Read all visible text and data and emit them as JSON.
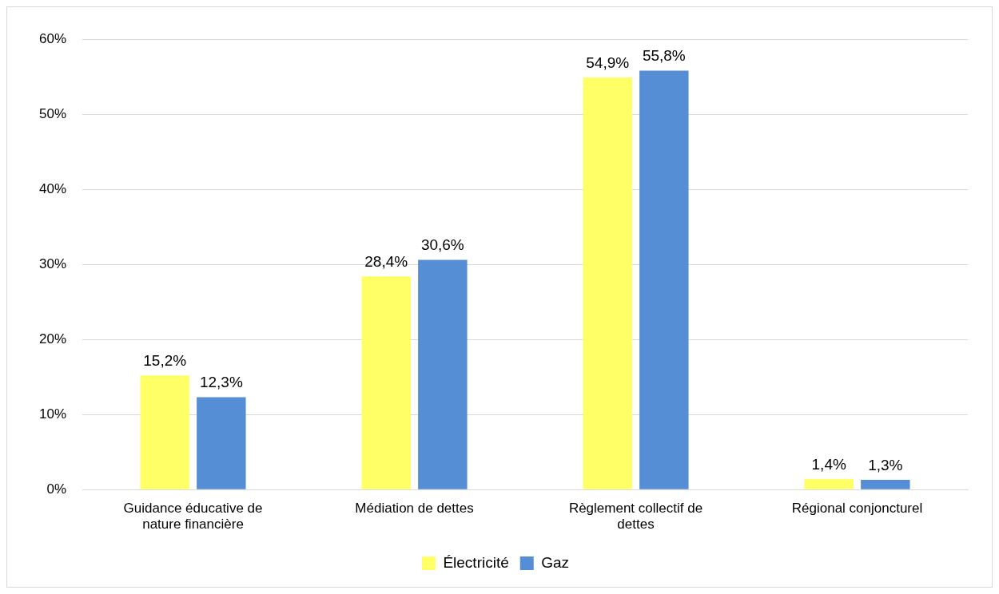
{
  "chart_data": {
    "type": "bar",
    "categories": [
      "Guidance éducative de nature financière",
      "Médiation de dettes",
      "Règlement collectif de dettes",
      "Régional conjoncturel"
    ],
    "series": [
      {
        "name": "Électricité",
        "color": "#ffff66",
        "values": [
          15.2,
          28.4,
          54.9,
          1.4
        ],
        "value_labels": [
          "15,2%",
          "28,4%",
          "54,9%",
          "1,4%"
        ]
      },
      {
        "name": "Gaz",
        "color": "#558ed5",
        "values": [
          12.3,
          30.6,
          55.8,
          1.3
        ],
        "value_labels": [
          "12,3%",
          "30,6%",
          "55,8%",
          "1,3%"
        ]
      }
    ],
    "ylim": [
      0,
      60
    ],
    "yticks": [
      {
        "value": 0,
        "label": "0%"
      },
      {
        "value": 10,
        "label": "10%"
      },
      {
        "value": 20,
        "label": "20%"
      },
      {
        "value": 30,
        "label": "30%"
      },
      {
        "value": 40,
        "label": "40%"
      },
      {
        "value": 50,
        "label": "50%"
      },
      {
        "value": 60,
        "label": "60%"
      }
    ],
    "grid": "y",
    "legend": "bottom"
  }
}
